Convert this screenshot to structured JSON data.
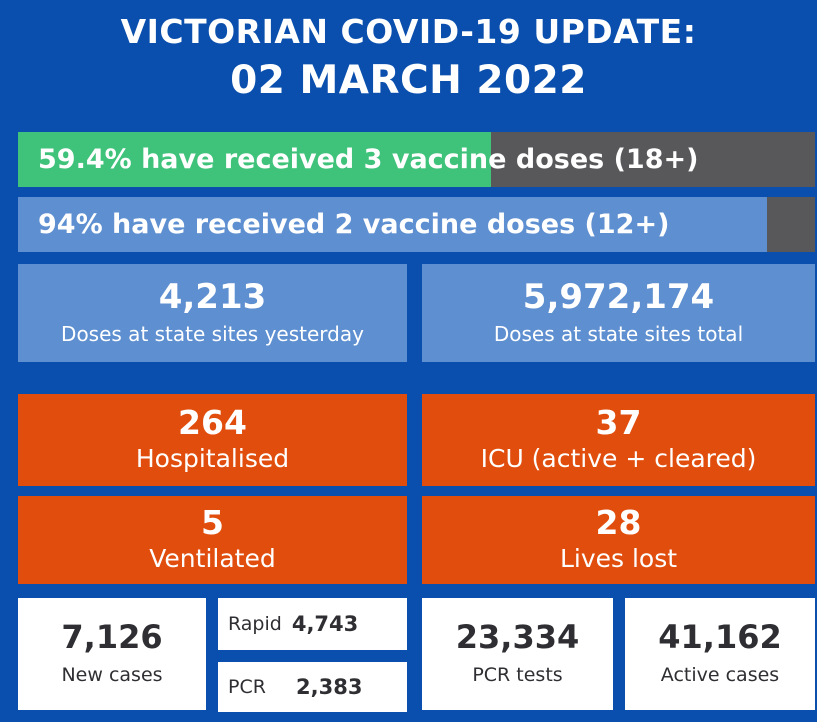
{
  "header": {
    "line1": "VICTORIAN COVID-19 UPDATE:",
    "line2": "02 MARCH 2022"
  },
  "vaccination": {
    "three_dose": {
      "text": "59.4% have received 3 vaccine doses (18+)",
      "percent": 59.4
    },
    "two_dose": {
      "text": "94% have received 2 vaccine doses (12+)",
      "percent": 94
    }
  },
  "doses": {
    "yesterday": {
      "value": "4,213",
      "label": "Doses at state sites yesterday"
    },
    "total": {
      "value": "5,972,174",
      "label": "Doses at state sites total"
    }
  },
  "hospital": {
    "hospitalised": {
      "value": "264",
      "label": "Hospitalised"
    },
    "icu": {
      "value": "37",
      "label": "ICU (active + cleared)"
    },
    "ventilated": {
      "value": "5",
      "label": "Ventilated"
    },
    "lives_lost": {
      "value": "28",
      "label": "Lives lost"
    }
  },
  "cases": {
    "new": {
      "value": "7,126",
      "label": "New cases"
    },
    "rapid": {
      "label": "Rapid",
      "value": "4,743"
    },
    "pcr": {
      "label": "PCR",
      "value": "2,383"
    },
    "pcr_tests": {
      "value": "23,334",
      "label": "PCR tests"
    },
    "active": {
      "value": "41,162",
      "label": "Active cases"
    }
  },
  "colors": {
    "background": "#0a4fad",
    "three_dose_fill": "#3fc27a",
    "two_dose_fill": "#5e8fd0",
    "bar_remainder": "#58585b",
    "stat_blue": "#5e8fd0",
    "stat_orange": "#e14d0c",
    "stat_white": "#ffffff"
  }
}
